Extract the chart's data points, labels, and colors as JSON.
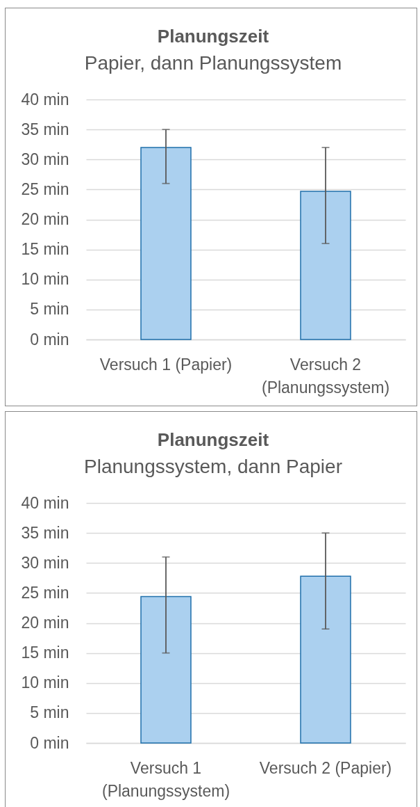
{
  "chart_data": [
    {
      "type": "bar",
      "title": "Planungszeit",
      "subtitle": "Papier, dann Planungssystem",
      "categories": [
        "Versuch 1 (Papier)",
        "Versuch 2 (Planungssystem)"
      ],
      "values": [
        32,
        24.7
      ],
      "errors": [
        [
          26,
          35
        ],
        [
          16,
          32
        ]
      ],
      "color": "#abd0ef",
      "ylim": [
        0,
        40
      ],
      "yticks": [
        {
          "value": 0,
          "label": "0 min"
        },
        {
          "value": 5,
          "label": "5 min"
        },
        {
          "value": 10,
          "label": "10 min"
        },
        {
          "value": 15,
          "label": "15 min"
        },
        {
          "value": 20,
          "label": "20 min"
        },
        {
          "value": 25,
          "label": "25 min"
        },
        {
          "value": 30,
          "label": "30 min"
        },
        {
          "value": 35,
          "label": "35 min"
        },
        {
          "value": 40,
          "label": "40 min"
        }
      ],
      "grid": "y"
    },
    {
      "type": "bar",
      "title": "Planungszeit",
      "subtitle": "Planungssystem, dann Papier",
      "categories": [
        "Versuch 1 (Planungssystem)",
        "Versuch 2 (Papier)"
      ],
      "values": [
        24.4,
        27.8
      ],
      "errors": [
        [
          15,
          31
        ],
        [
          19,
          35
        ]
      ],
      "color": "#abd0ef",
      "ylim": [
        0,
        40
      ],
      "yticks": [
        {
          "value": 0,
          "label": "0 min"
        },
        {
          "value": 5,
          "label": "5 min"
        },
        {
          "value": 10,
          "label": "10 min"
        },
        {
          "value": 15,
          "label": "15 min"
        },
        {
          "value": 20,
          "label": "20 min"
        },
        {
          "value": 25,
          "label": "25 min"
        },
        {
          "value": 30,
          "label": "30 min"
        },
        {
          "value": 35,
          "label": "35 min"
        },
        {
          "value": 40,
          "label": "40 min"
        }
      ],
      "grid": "y"
    }
  ]
}
